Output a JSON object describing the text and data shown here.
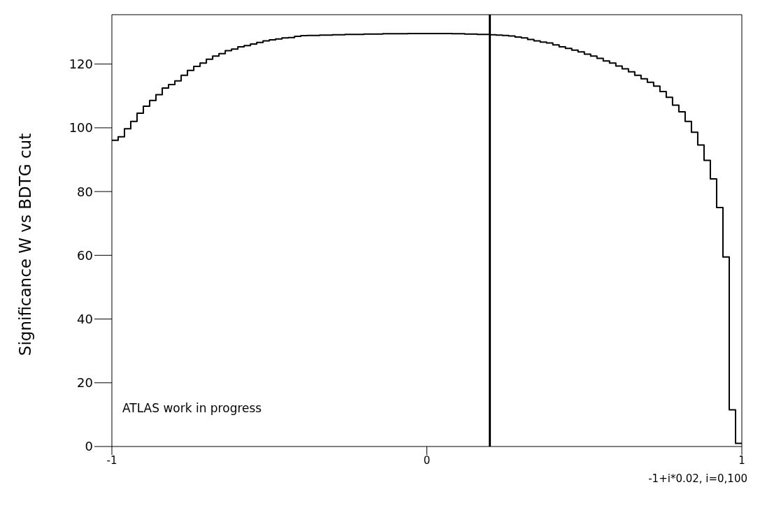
{
  "chart_data": {
    "type": "histogram",
    "xlabel": "-1+i*0.02, i=0,100",
    "ylabel": "Significance W vs BDTG cut",
    "annotations": [
      "ATLAS work in progress"
    ],
    "bins": [
      -1,
      -0.98,
      -0.96,
      -0.94,
      -0.92,
      -0.9,
      -0.88,
      -0.86,
      -0.84,
      -0.82,
      -0.8,
      -0.78,
      -0.76,
      -0.74,
      -0.72,
      -0.7,
      -0.68,
      -0.66,
      -0.64,
      -0.62,
      -0.6,
      -0.58,
      -0.56,
      -0.54,
      -0.52,
      -0.5,
      -0.48,
      -0.46,
      -0.44,
      -0.42,
      -0.4,
      -0.38,
      -0.36,
      -0.34,
      -0.32,
      -0.3,
      -0.28,
      -0.26,
      -0.24,
      -0.22,
      -0.2,
      -0.18,
      -0.16,
      -0.14,
      -0.12,
      -0.1,
      -0.08,
      -0.06,
      -0.04,
      -0.02,
      0,
      0.02,
      0.04,
      0.06,
      0.08,
      0.1,
      0.12,
      0.14,
      0.16,
      0.18,
      0.2,
      0.22,
      0.24,
      0.26,
      0.28,
      0.3,
      0.32,
      0.34,
      0.36,
      0.38,
      0.4,
      0.42,
      0.44,
      0.46,
      0.48,
      0.5,
      0.52,
      0.54,
      0.56,
      0.58,
      0.6,
      0.62,
      0.64,
      0.66,
      0.68,
      0.7,
      0.72,
      0.74,
      0.76,
      0.78,
      0.8,
      0.82,
      0.84,
      0.86,
      0.88,
      0.9,
      0.92,
      0.94,
      0.96,
      0.98,
      1
    ],
    "values": [
      96.1,
      97.2,
      99.7,
      102.0,
      104.6,
      106.8,
      108.6,
      110.4,
      112.5,
      113.6,
      114.7,
      116.5,
      118.0,
      119.3,
      120.3,
      121.5,
      122.5,
      123.3,
      124.2,
      124.7,
      125.4,
      125.8,
      126.3,
      126.8,
      127.3,
      127.6,
      127.9,
      128.2,
      128.3,
      128.7,
      128.9,
      129.0,
      129.0,
      129.1,
      129.1,
      129.2,
      129.2,
      129.3,
      129.3,
      129.3,
      129.4,
      129.4,
      129.4,
      129.5,
      129.5,
      129.5,
      129.5,
      129.6,
      129.6,
      129.6,
      129.6,
      129.6,
      129.6,
      129.6,
      129.5,
      129.5,
      129.4,
      129.4,
      129.3,
      129.3,
      129.2,
      129.1,
      129.0,
      128.8,
      128.5,
      128.2,
      127.7,
      127.3,
      126.9,
      126.6,
      126.0,
      125.4,
      124.9,
      124.4,
      123.8,
      123.1,
      122.5,
      121.8,
      121.0,
      120.3,
      119.4,
      118.5,
      117.6,
      116.5,
      115.4,
      114.3,
      113.1,
      111.4,
      109.6,
      107.1,
      105.0,
      102.0,
      98.6,
      94.6,
      89.8,
      84.0,
      75.0,
      59.5,
      11.5,
      1.0
    ],
    "color": "#000000",
    "xlim": [
      -1,
      1
    ],
    "ylim": [
      0,
      135.5
    ],
    "xticks": [
      -1,
      0,
      1
    ],
    "yticks": [
      0,
      20,
      40,
      60,
      80,
      100,
      120
    ],
    "ref_lines": [
      {
        "axis": "x",
        "value": 0.2,
        "color": "#000000"
      }
    ]
  }
}
